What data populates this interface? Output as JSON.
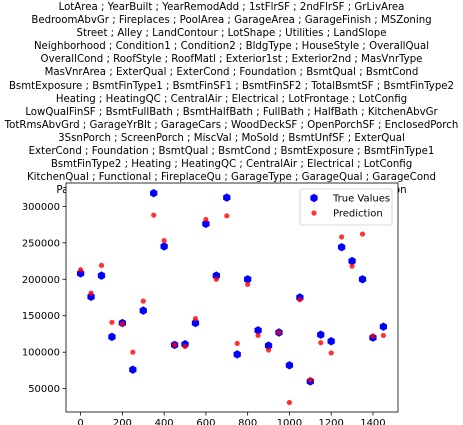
{
  "chart_data": {
    "type": "scatter",
    "title_lines": [
      "LotArea ; YearBuilt ; YearRemodAdd ; 1stFlrSF ; 2ndFlrSF ; GrLivArea",
      "BedroomAbvGr ; Fireplaces ; PoolArea ; GarageArea ; GarageFinish ; MSZoning",
      "Street ; Alley ; LandContour ; LotShape ; Utilities ; LandSlope",
      "Neighborhood ; Condition1 ; Condition2 ; BldgType ; HouseStyle ; OverallQual",
      "OverallCond ; RoofStyle ; RoofMatl ; Exterior1st ; Exterior2nd ; MasVnrType",
      "MasVnrArea ; ExterQual ; ExterCond ; Foundation ; BsmtQual ; BsmtCond",
      "BsmtExposure ; BsmtFinType1 ; BsmtFinSF1 ; BsmtFinSF2 ; TotalBsmtSF ; BsmtFinType2",
      "Heating ; HeatingQC ; CentralAir ; Electrical ; LotFrontage ; LotConfig",
      "LowQualFinSF ; BsmtFullBath ; BsmtHalfBath ; FullBath ; HalfBath ; KitchenAbvGr",
      "TotRmsAbvGrd ; GarageYrBlt ; GarageCars ; WoodDeckSF ; OpenPorchSF ; EnclosedPorch",
      "3SsnPorch ; ScreenPorch ; MiscVal ; MoSold ; BsmtUnfSF ; ExterQual",
      "ExterCond ; Foundation ; BsmtQual ; BsmtCond ; BsmtExposure ; BsmtFinType1",
      "BsmtFinType2 ; Heating ; HeatingQC ; CentralAir ; Electrical ; LotConfig",
      "KitchenQual ; Functional ; FireplaceQu ; GarageType ; GarageQual ; GarageCond",
      "PavedDrive ; PoolQC ; Fence ; MiscFeature ; SaleType ; SaleCondition"
    ],
    "x": [
      0,
      50,
      100,
      150,
      200,
      250,
      300,
      350,
      400,
      450,
      500,
      550,
      600,
      650,
      700,
      750,
      800,
      850,
      900,
      950,
      1000,
      1050,
      1100,
      1150,
      1200,
      1250,
      1300,
      1350,
      1400,
      1450
    ],
    "series": [
      {
        "name": "True Values",
        "marker": "hexagon",
        "color": "#0000ff",
        "values": [
          208000,
          176000,
          205000,
          121000,
          140000,
          76000,
          157000,
          318000,
          245000,
          110000,
          111000,
          140000,
          276000,
          205000,
          312000,
          97000,
          200000,
          130000,
          109000,
          127000,
          82000,
          175000,
          60000,
          124000,
          115000,
          244000,
          225000,
          200000,
          120000,
          135000
        ]
      },
      {
        "name": "Prediction",
        "marker": "circle",
        "color": "#ff0000",
        "values": [
          213000,
          181000,
          219000,
          141000,
          139000,
          100000,
          170000,
          288000,
          253000,
          110000,
          108000,
          146000,
          282000,
          200000,
          287000,
          112000,
          193000,
          123000,
          103000,
          127000,
          31000,
          172000,
          62000,
          113000,
          99000,
          258000,
          218000,
          262000,
          122000,
          123000
        ]
      }
    ],
    "xticks": [
      0,
      200,
      400,
      600,
      800,
      1000,
      1200,
      1400
    ],
    "yticks": [
      50000,
      100000,
      150000,
      200000,
      250000,
      300000
    ],
    "xlim": [
      -70,
      1520
    ],
    "ylim": [
      18000,
      332000
    ],
    "legend_position": "top-right",
    "grid": false
  }
}
